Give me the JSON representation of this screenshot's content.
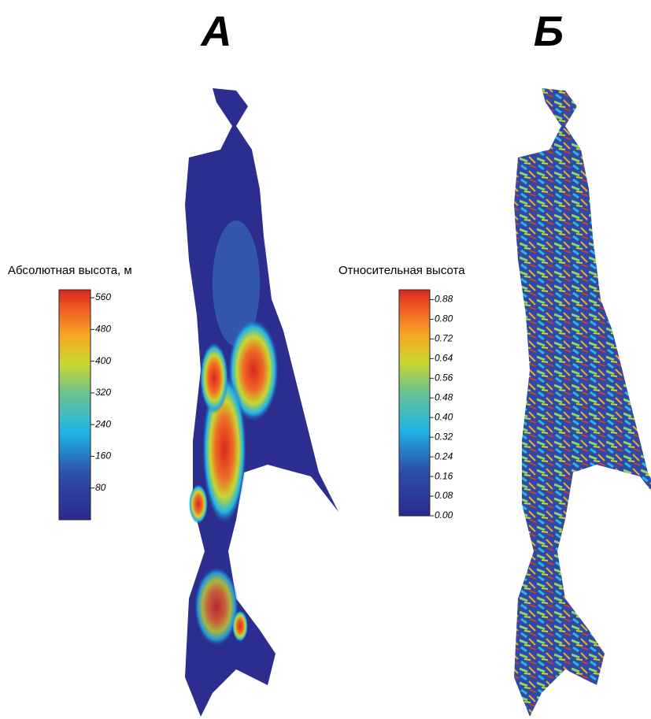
{
  "panels": [
    {
      "label": "А",
      "legend": {
        "title": "Абсолютная высота, м",
        "range": [
          0,
          580
        ],
        "ticks": [
          560,
          480,
          400,
          320,
          240,
          160,
          80
        ]
      }
    },
    {
      "label": "Б",
      "legend": {
        "title": "Относительная высота",
        "range": [
          0,
          0.92
        ],
        "ticks": [
          0.88,
          {
            "value": 0.8,
            "label": "0.80"
          },
          0.72,
          0.64,
          0.56,
          0.48,
          {
            "value": 0.4,
            "label": "0.40"
          },
          0.32,
          0.24,
          0.16,
          0.08,
          {
            "value": 0,
            "label": "0.00"
          }
        ]
      }
    }
  ]
}
